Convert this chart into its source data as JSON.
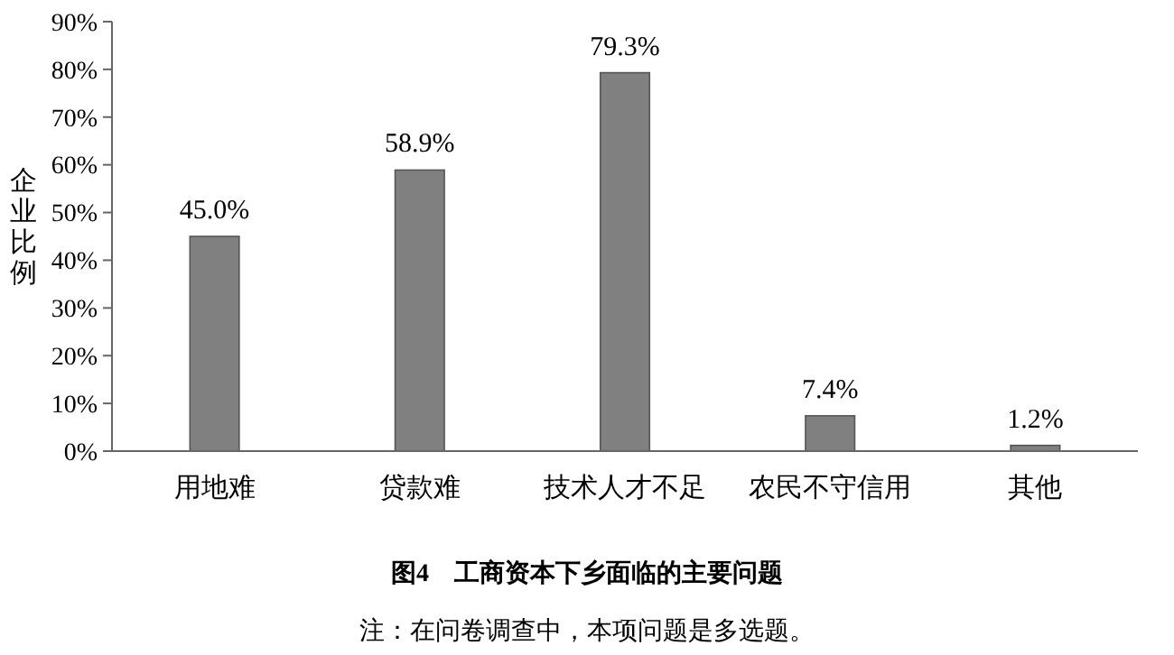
{
  "chart_data": {
    "type": "bar",
    "title": "图4　工商资本下乡面临的主要问题",
    "ylabel": "企业比例",
    "categories": [
      "用地难",
      "贷款难",
      "技术人才不足",
      "农民不守信用",
      "其他"
    ],
    "values": [
      45.0,
      58.9,
      79.3,
      7.4,
      1.2
    ],
    "value_labels": [
      "45.0%",
      "58.9%",
      "79.3%",
      "7.4%",
      "1.2%"
    ],
    "color": "#808080",
    "ylim": [
      0,
      90
    ],
    "yticks": [
      {
        "value": 0,
        "label": "0%"
      },
      {
        "value": 10,
        "label": "10%"
      },
      {
        "value": 20,
        "label": "20%"
      },
      {
        "value": 30,
        "label": "30%"
      },
      {
        "value": 40,
        "label": "40%"
      },
      {
        "value": 50,
        "label": "50%"
      },
      {
        "value": 60,
        "label": "60%"
      },
      {
        "value": 70,
        "label": "70%"
      },
      {
        "value": 80,
        "label": "80%"
      },
      {
        "value": 90,
        "label": "90%"
      }
    ],
    "grid": false,
    "annotations": [
      "注：在问卷调查中，本项问题是多选题。"
    ]
  }
}
